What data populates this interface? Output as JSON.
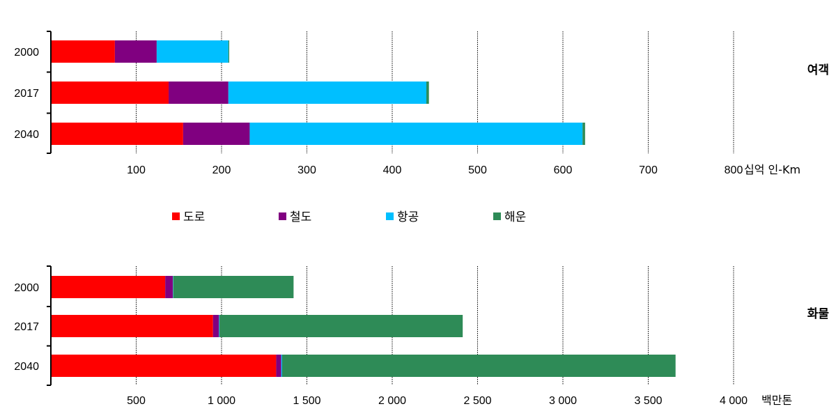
{
  "chart_data": [
    {
      "type": "bar",
      "orientation": "horizontal",
      "stacked": true,
      "panel_label": "여객",
      "unit_label": "십억 인-Km",
      "categories": [
        "2000",
        "2017",
        "2040"
      ],
      "xlim": [
        0,
        800
      ],
      "xticks": [
        "100",
        "200",
        "300",
        "400",
        "500",
        "600",
        "700",
        "800"
      ],
      "xtick_values": [
        100,
        200,
        300,
        400,
        500,
        600,
        700,
        800
      ],
      "grid": "vertical dotted",
      "series": [
        {
          "name": "도로",
          "color": "#ff0000",
          "values": [
            75,
            138,
            155
          ]
        },
        {
          "name": "철도",
          "color": "#800080",
          "values": [
            49,
            70,
            78
          ]
        },
        {
          "name": "항공",
          "color": "#00bfff",
          "values": [
            84,
            232,
            390
          ]
        },
        {
          "name": "해운",
          "color": "#2e8b57",
          "values": [
            1,
            3,
            3
          ]
        }
      ]
    },
    {
      "type": "bar",
      "orientation": "horizontal",
      "stacked": true,
      "panel_label": "화물",
      "unit_label": "백만톤",
      "categories": [
        "2000",
        "2017",
        "2040"
      ],
      "xlim": [
        0,
        4000
      ],
      "xticks": [
        "500",
        "1 000",
        "1 500",
        "2 000",
        "2 500",
        "3 000",
        "3 500",
        "4 000"
      ],
      "xtick_values": [
        500,
        1000,
        1500,
        2000,
        2500,
        3000,
        3500,
        4000
      ],
      "grid": "vertical dotted",
      "series": [
        {
          "name": "도로",
          "color": "#ff0000",
          "values": [
            670,
            950,
            1320
          ]
        },
        {
          "name": "철도",
          "color": "#800080",
          "values": [
            45,
            35,
            30
          ]
        },
        {
          "name": "항공",
          "color": "#00bfff",
          "values": [
            2,
            3,
            5
          ]
        },
        {
          "name": "해운",
          "color": "#2e8b57",
          "values": [
            705,
            1425,
            2305
          ]
        }
      ]
    }
  ],
  "legend": {
    "placement": "between panels",
    "items": [
      {
        "name": "도로",
        "color": "#ff0000"
      },
      {
        "name": "철도",
        "color": "#800080"
      },
      {
        "name": "항공",
        "color": "#00bfff"
      },
      {
        "name": "해운",
        "color": "#2e8b57"
      }
    ]
  }
}
